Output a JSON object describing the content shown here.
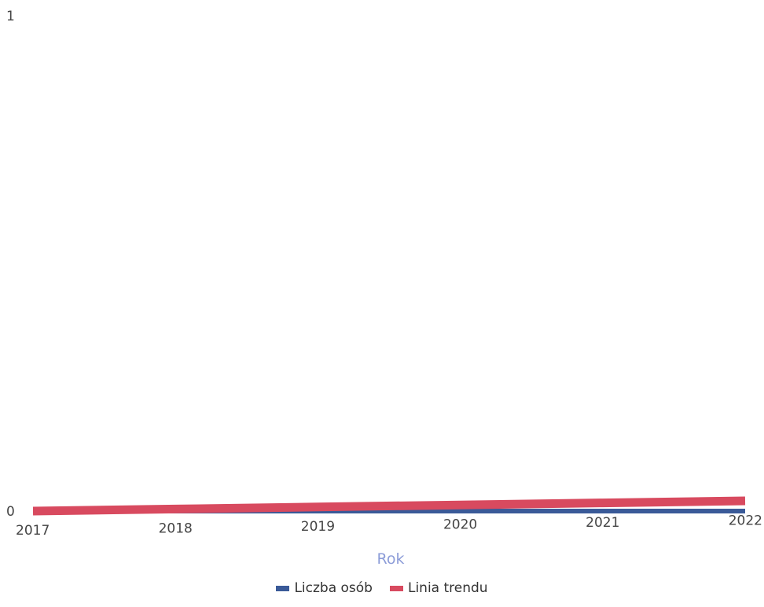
{
  "chart_data": {
    "type": "line",
    "title": "",
    "xlabel": "Rok",
    "ylabel": "",
    "x": [
      "2017",
      "2018",
      "2019",
      "2020",
      "2021",
      "2022"
    ],
    "ylim": [
      0,
      1
    ],
    "yticks": [
      "0",
      "1"
    ],
    "grid": false,
    "legend_position": "bottom",
    "series": [
      {
        "name": "Liczba osób",
        "color": "#3a5a98",
        "values": [
          0,
          0,
          0,
          0,
          0,
          0
        ]
      },
      {
        "name": "Linia trendu",
        "color": "#d84a5f",
        "values": [
          0,
          0.002,
          0.004,
          0.006,
          0.008,
          0.01
        ]
      }
    ]
  }
}
